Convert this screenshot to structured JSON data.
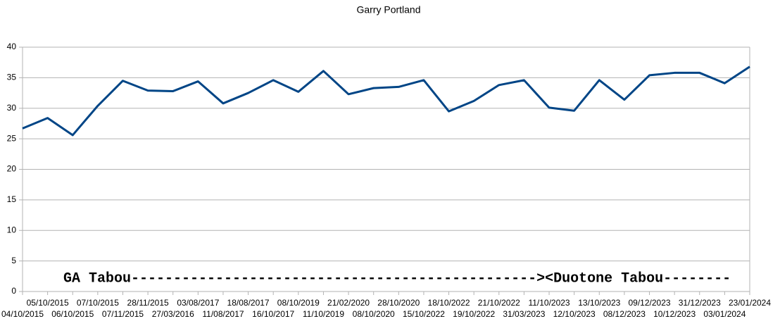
{
  "chart_data": {
    "type": "line",
    "title": "Garry Portland",
    "categories": [
      "04/10/2015",
      "05/10/2015",
      "06/10/2015",
      "07/10/2015",
      "07/11/2015",
      "28/11/2015",
      "27/03/2016",
      "03/08/2017",
      "11/08/2017",
      "18/08/2017",
      "16/10/2017",
      "08/10/2019",
      "11/10/2019",
      "21/02/2020",
      "08/10/2020",
      "28/10/2020",
      "15/10/2022",
      "18/10/2022",
      "19/10/2022",
      "21/10/2022",
      "31/03/2023",
      "11/10/2023",
      "12/10/2023",
      "13/10/2023",
      "08/12/2023",
      "09/12/2023",
      "10/12/2023",
      "31/12/2023",
      "03/01/2024",
      "23/01/2024"
    ],
    "values": [
      26.7,
      28.4,
      25.6,
      30.4,
      34.5,
      32.9,
      32.8,
      34.4,
      30.8,
      32.5,
      34.6,
      32.7,
      36.1,
      32.3,
      33.3,
      33.5,
      34.6,
      29.5,
      31.2,
      33.8,
      34.6,
      30.1,
      29.6,
      34.6,
      31.4,
      35.4,
      35.8,
      35.8,
      34.1,
      36.8
    ],
    "color": "#004586",
    "ylim": [
      0,
      40
    ],
    "yticks": [
      0,
      5,
      10,
      15,
      20,
      25,
      30,
      35,
      40
    ],
    "grid": true,
    "annotation": "GA Tabou------------------------------------------------><Duotone Tabou--------"
  }
}
